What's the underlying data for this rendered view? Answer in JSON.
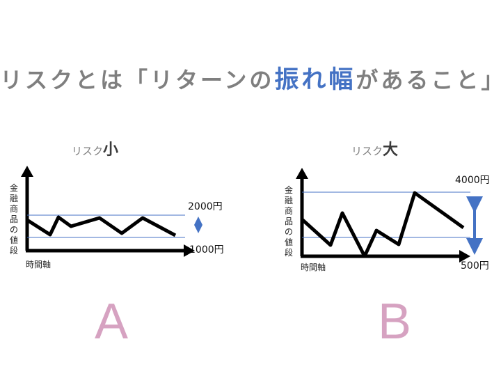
{
  "heading": {
    "prefix": "リスクとは「リターンの",
    "highlight": "振れ幅",
    "suffix": "があること」"
  },
  "panel_a": {
    "title_prefix": "リスク",
    "title_emphasis": "小",
    "y_axis_label": "金融商品の値段",
    "x_axis_label": "時間軸",
    "upper_value": "2000円",
    "lower_value": "1000円",
    "letter": "A"
  },
  "panel_b": {
    "title_prefix": "リスク",
    "title_emphasis": "大",
    "y_axis_label": "金融商品の値段",
    "x_axis_label": "時間軸",
    "upper_value": "4000円",
    "lower_value": "500円",
    "letter": "B"
  },
  "colors": {
    "title_gray": "#7f7f7f",
    "highlight_blue": "#4472c4",
    "letter_pink": "#d6a2c1",
    "line_black": "#000000"
  }
}
